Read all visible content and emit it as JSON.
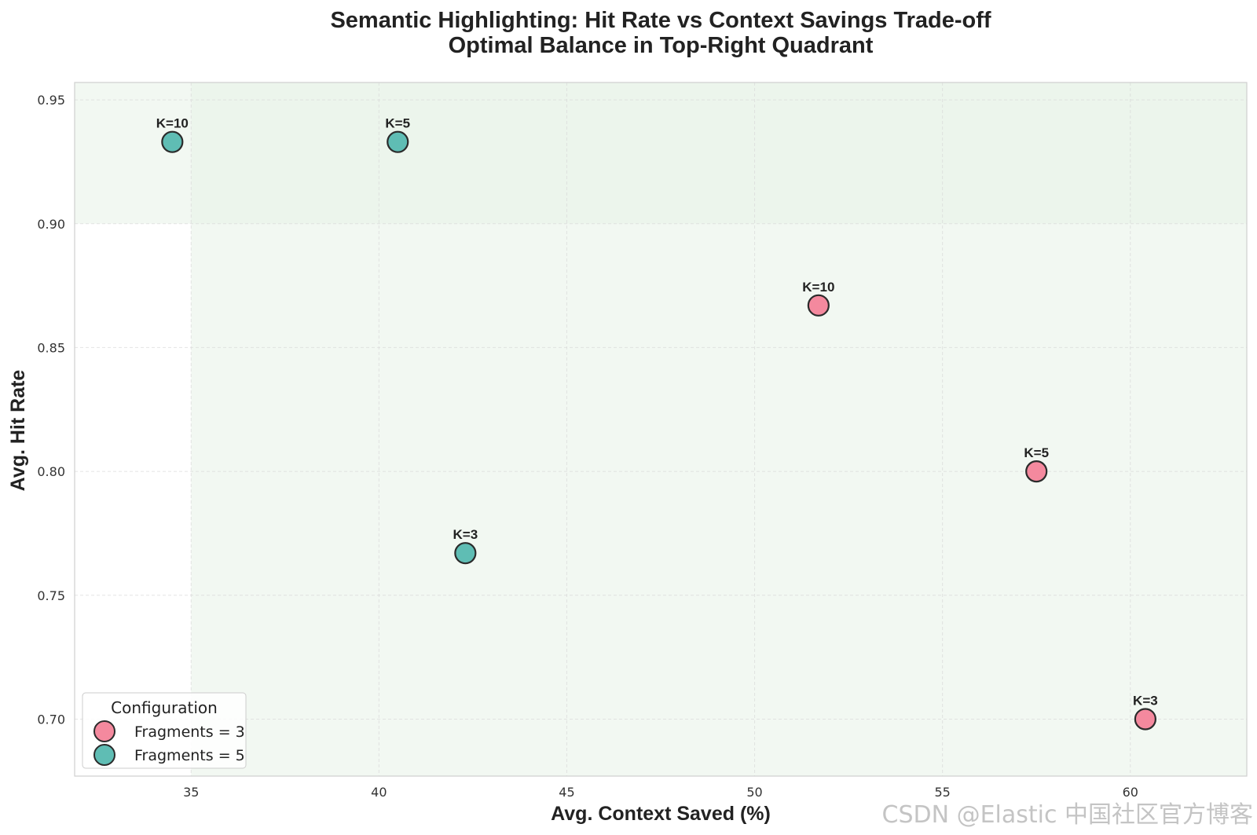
{
  "chart_data": {
    "type": "scatter",
    "title": "Semantic Highlighting: Hit Rate vs Context Savings Trade-off",
    "subtitle": "Optimal Balance in Top-Right Quadrant",
    "xlabel": "Avg. Context Saved (%)",
    "ylabel": "Avg. Hit Rate",
    "xlim": [
      31.9,
      63.1
    ],
    "ylim": [
      0.677,
      0.957
    ],
    "xticks": [
      35,
      40,
      45,
      50,
      55,
      60
    ],
    "yticks": [
      0.7,
      0.75,
      0.8,
      0.85,
      0.9,
      0.95
    ],
    "grid": true,
    "shaded_regions": [
      {
        "x": [
          35,
          63.1
        ],
        "y": [
          0.677,
          0.957
        ],
        "color": "#e7f2e7",
        "opacity": 0.55
      },
      {
        "x": [
          31.9,
          63.1
        ],
        "y": [
          0.9,
          0.957
        ],
        "color": "#e7f2e7",
        "opacity": 0.55
      }
    ],
    "legend": {
      "title": "Configuration",
      "placement": "lower-left"
    },
    "series": [
      {
        "name": "Fragments = 3",
        "color": "#f4899e",
        "points": [
          {
            "x": 51.7,
            "y": 0.867,
            "label": "K=10"
          },
          {
            "x": 57.5,
            "y": 0.8,
            "label": "K=5"
          },
          {
            "x": 60.4,
            "y": 0.7,
            "label": "K=3"
          }
        ]
      },
      {
        "name": "Fragments = 5",
        "color": "#5fbdb4",
        "points": [
          {
            "x": 34.5,
            "y": 0.933,
            "label": "K=10"
          },
          {
            "x": 40.5,
            "y": 0.933,
            "label": "K=5"
          },
          {
            "x": 42.3,
            "y": 0.767,
            "label": "K=3"
          }
        ]
      }
    ]
  },
  "watermark": "CSDN @Elastic 中国社区官方博客"
}
